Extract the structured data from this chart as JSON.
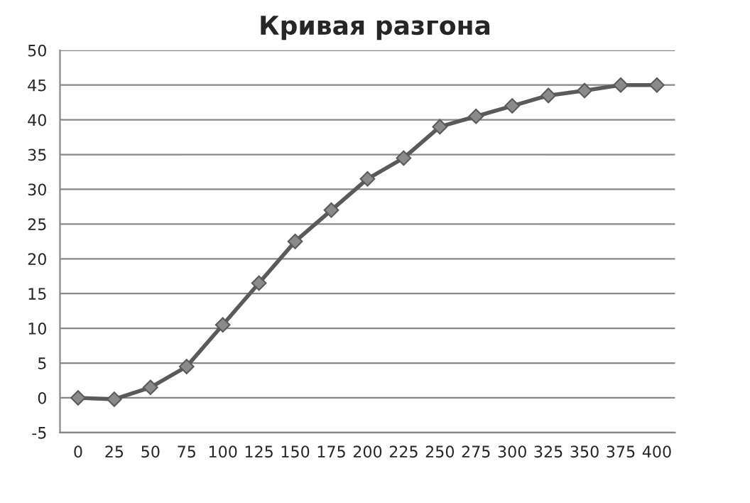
{
  "chart_data": {
    "type": "line",
    "title": "Кривая разгона",
    "categories": [
      "0",
      "25",
      "50",
      "75",
      "100",
      "125",
      "150",
      "175",
      "200",
      "225",
      "250",
      "275",
      "300",
      "325",
      "350",
      "375",
      "400"
    ],
    "series": [
      {
        "color": "#5a5a5a",
        "values": [
          0,
          -0.2,
          1.5,
          4.5,
          10.5,
          16.5,
          22.5,
          27,
          31.5,
          34.5,
          39,
          40.5,
          42,
          43.5,
          44.2,
          45,
          45
        ]
      }
    ],
    "ylim": [
      -5,
      50
    ],
    "yticks": [
      -5,
      0,
      5,
      10,
      15,
      20,
      25,
      30,
      35,
      40,
      45,
      50
    ],
    "grid": "y",
    "marker": "diamond",
    "line_style": "solid"
  }
}
